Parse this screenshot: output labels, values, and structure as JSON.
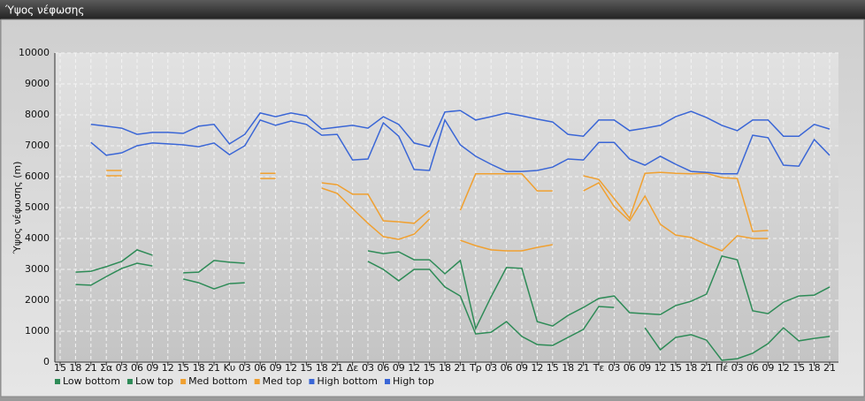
{
  "chart_data": {
    "type": "line",
    "title": "Ύψος νέφωσης",
    "ylabel": "Ύψος νέφωσης (m)",
    "categories": [
      "15",
      "18",
      "21",
      "Σα",
      "03",
      "06",
      "09",
      "12",
      "15",
      "18",
      "21",
      "Κυ",
      "03",
      "06",
      "09",
      "12",
      "15",
      "18",
      "21",
      "Δε",
      "03",
      "06",
      "09",
      "12",
      "15",
      "18",
      "21",
      "Τρ",
      "03",
      "06",
      "09",
      "12",
      "15",
      "18",
      "21",
      "Τε",
      "03",
      "06",
      "09",
      "12",
      "15",
      "18",
      "21",
      "Πέ",
      "03",
      "06",
      "09",
      "12",
      "15",
      "18",
      "21"
    ],
    "series": [
      {
        "name": "Low bottom",
        "color": "#2e8b57",
        "values": [
          null,
          2510,
          2490,
          2770,
          3030,
          3200,
          3110,
          null,
          2690,
          2570,
          2370,
          2540,
          2570,
          null,
          null,
          null,
          null,
          null,
          null,
          null,
          3260,
          3000,
          2630,
          3000,
          3000,
          2430,
          2140,
          910,
          970,
          1310,
          830,
          570,
          540,
          800,
          1060,
          1800,
          1770,
          null,
          1110,
          400,
          800,
          890,
          710,
          60,
          110,
          290,
          600,
          1110,
          690,
          770,
          830
        ]
      },
      {
        "name": "Low top",
        "color": "#2e8b57",
        "values": [
          null,
          2910,
          2940,
          3090,
          3260,
          3630,
          3460,
          null,
          2890,
          2910,
          3290,
          3230,
          3200,
          null,
          null,
          null,
          null,
          null,
          null,
          null,
          3600,
          3510,
          3570,
          3310,
          3310,
          2860,
          3290,
          1090,
          2110,
          3060,
          3030,
          1310,
          1170,
          1510,
          1770,
          2060,
          2140,
          1600,
          1570,
          1540,
          1830,
          1970,
          2200,
          3430,
          3310,
          1660,
          1570,
          1940,
          2140,
          2170,
          2430
        ]
      },
      {
        "name": "Med bottom",
        "color": "#f0a030",
        "values": [
          null,
          null,
          null,
          6030,
          6030,
          null,
          null,
          null,
          null,
          null,
          null,
          null,
          null,
          5940,
          5940,
          null,
          null,
          5630,
          5460,
          4970,
          4490,
          4060,
          3970,
          4140,
          4630,
          null,
          3940,
          3770,
          3630,
          3600,
          3600,
          3710,
          3800,
          null,
          5540,
          5800,
          5030,
          4570,
          5370,
          4460,
          4110,
          4030,
          3800,
          3600,
          4090,
          4000,
          4000,
          null,
          null,
          null,
          null
        ]
      },
      {
        "name": "Med top",
        "color": "#f0a030",
        "values": [
          null,
          null,
          null,
          6200,
          6200,
          null,
          null,
          null,
          null,
          null,
          null,
          null,
          null,
          6110,
          6110,
          null,
          null,
          5800,
          5740,
          5430,
          5430,
          4570,
          4540,
          4490,
          4910,
          null,
          4910,
          6090,
          6090,
          6090,
          6090,
          5540,
          5540,
          null,
          6030,
          5910,
          5290,
          4660,
          6110,
          6140,
          6110,
          6090,
          6110,
          5970,
          5940,
          4230,
          4260,
          null,
          null,
          null,
          null
        ]
      },
      {
        "name": "High bottom",
        "color": "#3a66d6",
        "values": [
          null,
          null,
          7110,
          6690,
          6770,
          7000,
          7090,
          7060,
          7030,
          6970,
          7090,
          6710,
          7000,
          7830,
          7660,
          7800,
          7690,
          7340,
          7370,
          6540,
          6570,
          7740,
          7310,
          6230,
          6200,
          7830,
          7030,
          6660,
          6400,
          6170,
          6170,
          6200,
          6310,
          6570,
          6540,
          7110,
          7110,
          6570,
          6370,
          6660,
          6400,
          6170,
          6140,
          6090,
          6090,
          7340,
          7260,
          6370,
          6340,
          7200,
          6690
        ]
      },
      {
        "name": "High top",
        "color": "#3a66d6",
        "values": [
          null,
          null,
          7690,
          7630,
          7570,
          7370,
          7430,
          7430,
          7400,
          7630,
          7690,
          7060,
          7370,
          8060,
          7940,
          8060,
          7970,
          7540,
          7600,
          7660,
          7570,
          7940,
          7690,
          7090,
          6970,
          8090,
          8140,
          7830,
          7940,
          8060,
          7970,
          7860,
          7770,
          7370,
          7310,
          7830,
          7830,
          7490,
          7570,
          7660,
          7940,
          8110,
          7910,
          7660,
          7490,
          7830,
          7830,
          7310,
          7310,
          7690,
          7540
        ]
      }
    ],
    "ylim": [
      0,
      10000
    ],
    "yticks": [
      0,
      1000,
      2000,
      3000,
      4000,
      5000,
      6000,
      7000,
      8000,
      9000,
      10000
    ],
    "grid": true
  }
}
